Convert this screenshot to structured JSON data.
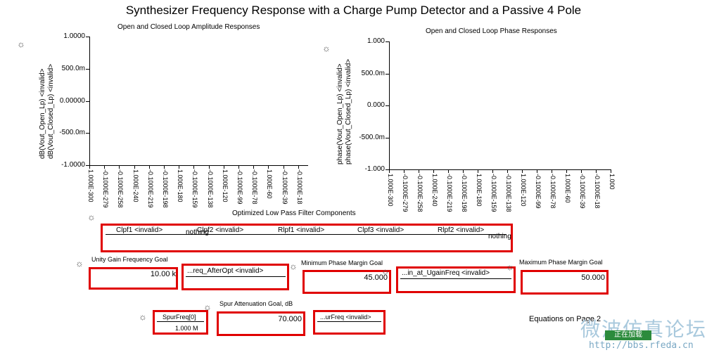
{
  "page": {
    "title": "Synthesizer Frequency Response with a Charge Pump Detector and a  Passive 4 Pole"
  },
  "amplitude_plot": {
    "title": "Open and Closed Loop Amplitude Responses",
    "ylabel_1": "dB(Vout_Open_Lp) <invalid>",
    "ylabel_2": "dB(Vout_Closed_Lp) <invalid>",
    "yticks": [
      "1.0000",
      "500.0m",
      "0.00000",
      "-500.0m",
      "-1.0000"
    ],
    "xticks": [
      "1.000E-300",
      "-0.1000E-279",
      "-0.1000E-258",
      "1.000E-240",
      "-0.1000E-219",
      "-0.1000E-198",
      "1.000E-180",
      "-0.1000E-159",
      "-0.1000E-138",
      "1.000E-120",
      "-0.1000E-99",
      "-0.1000E-78",
      "1.000E-60",
      "-0.1000E-39",
      "-0.1000E-18"
    ]
  },
  "phase_plot": {
    "title": "Open and Closed Loop Phase Responses",
    "ylabel_1": "phase(Vout_Open_Lp) <invalid>",
    "ylabel_2": "phase(Vout_Closed_Lp) <invalid>",
    "yticks": [
      "1.000",
      "500.0m",
      "0.000",
      "-500.0m",
      "-1.000"
    ],
    "xticks": [
      "1.000E-300",
      "-0.1000E-279",
      "-0.1000E-258",
      "1.000E-240",
      "-0.1000E-219",
      "-0.1000E-198",
      "1.000E-180",
      "-0.1000E-159",
      "-0.1000E-138",
      "1.000E-120",
      "-0.1000E-99",
      "-0.1000E-78",
      "1.000E-60",
      "-0.1000E-39",
      "-0.1000E-18",
      "1.000"
    ]
  },
  "filter_table": {
    "title": "Optimized Low Pass Filter Components",
    "cells": [
      "Clpf1  <invalid>",
      "Clpf2 <invalid>",
      "Rlpf1  <invalid>",
      "Clpf3 <invalid>",
      "Rlpf2 <invalid>"
    ],
    "nothing_1": "nothing",
    "nothing_2": "nothing"
  },
  "unity_gain": {
    "label": "Unity Gain Frequency Goal",
    "value": "10.00 k"
  },
  "freq_after_opt": {
    "label": "...req_AfterOpt <invalid>"
  },
  "min_phase_margin": {
    "label": "Minimum Phase Margin Goal",
    "value": "45.000"
  },
  "pm_at_ugain": {
    "label": "...in_at_UgainFreq <invalid>"
  },
  "max_phase_margin": {
    "label": "Maximum Phase Margin Goal",
    "value": "50.000"
  },
  "spur_freq": {
    "label": "SpurFreq[0]",
    "value": "1.000 M"
  },
  "spur_atten": {
    "label": "Spur Attenuation Goal, dB",
    "value": "70.000"
  },
  "spur_freq_out": {
    "label": "...urFreq <invalid>"
  },
  "footnote": "Equations on Page 2",
  "watermark": {
    "chinese": "微波仿真论坛",
    "url": "http://bbs.rfeda.cn",
    "badge": "正在加载"
  }
}
